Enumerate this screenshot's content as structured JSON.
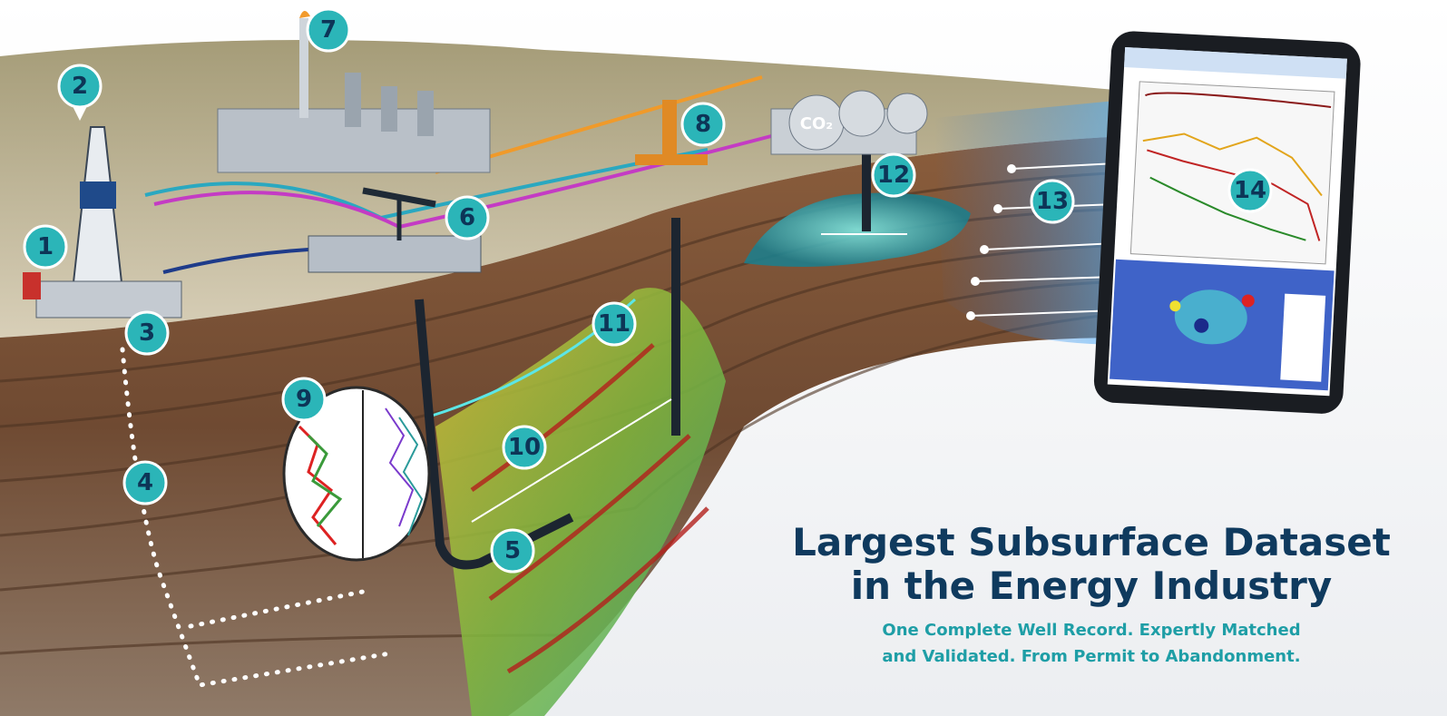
{
  "markers": [
    {
      "label": "1"
    },
    {
      "label": "2"
    },
    {
      "label": "3"
    },
    {
      "label": "4"
    },
    {
      "label": "5"
    },
    {
      "label": "6"
    },
    {
      "label": "7"
    },
    {
      "label": "8"
    },
    {
      "label": "9"
    },
    {
      "label": "10"
    },
    {
      "label": "11"
    },
    {
      "label": "12"
    },
    {
      "label": "13"
    },
    {
      "label": "14"
    }
  ],
  "tank_label": "CO₂",
  "headline": {
    "line1": "Largest Subsurface Dataset",
    "line2": "in the Energy Industry"
  },
  "tagline": {
    "line1": "One Complete Well Record. Expertly Matched",
    "line2": "and Validated. From Permit to Abandonment."
  }
}
